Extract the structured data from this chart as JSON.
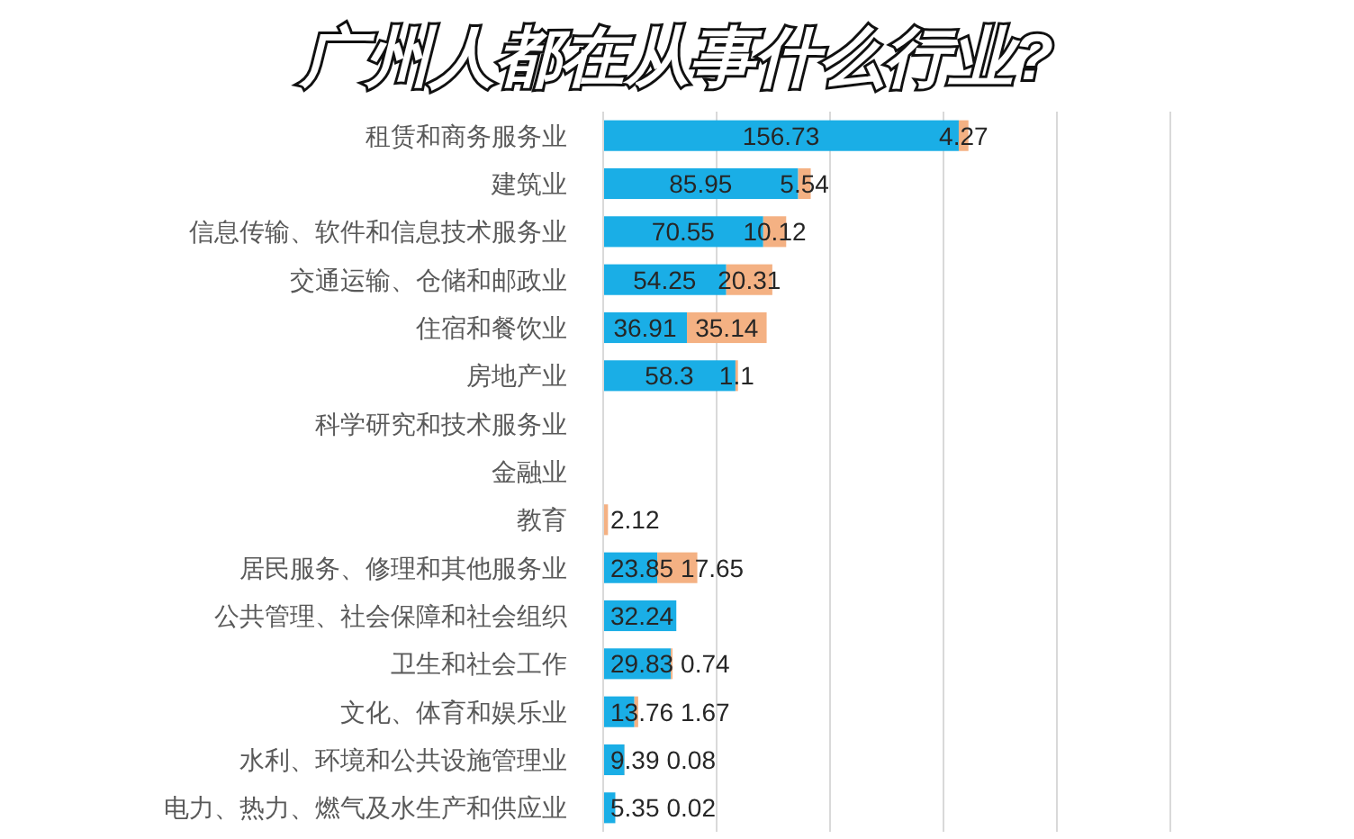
{
  "chart_data": {
    "type": "bar",
    "orientation": "horizontal",
    "stacked": true,
    "title": "广州人都在从事什么行业?",
    "categories": [
      "租赁和商务服务业",
      "建筑业",
      "信息传输、软件和信息技术服务业",
      "交通运输、仓储和邮政业",
      "住宿和餐饮业",
      "房地产业",
      "科学研究和技术服务业",
      "金融业",
      "教育",
      "居民服务、修理和其他服务业",
      "公共管理、社会保障和社会组织",
      "卫生和社会工作",
      "文化、体育和娱乐业",
      "水利、环境和公共设施管理业",
      "电力、热力、燃气及水生产和供应业"
    ],
    "series": [
      {
        "color": "#1aaee6",
        "values": [
          156.73,
          85.95,
          70.55,
          54.25,
          36.91,
          58.3,
          null,
          null,
          null,
          23.85,
          32.24,
          29.83,
          13.76,
          9.39,
          5.35
        ]
      },
      {
        "color": "#f4b183",
        "values": [
          4.27,
          5.54,
          10.12,
          20.31,
          35.14,
          1.1,
          null,
          null,
          2.12,
          17.65,
          null,
          0.74,
          1.67,
          0.08,
          0.02
        ]
      }
    ],
    "xlim": [
      0,
      250
    ],
    "xticks": [
      {
        "value": 0,
        "label": null
      },
      {
        "value": 50,
        "label": null
      },
      {
        "value": 100,
        "label": null
      },
      {
        "value": 150,
        "label": null
      },
      {
        "value": 200,
        "label": null
      },
      {
        "value": 250,
        "label": null
      }
    ],
    "grid": "x",
    "data_labels": true,
    "tick_labels": "y"
  }
}
